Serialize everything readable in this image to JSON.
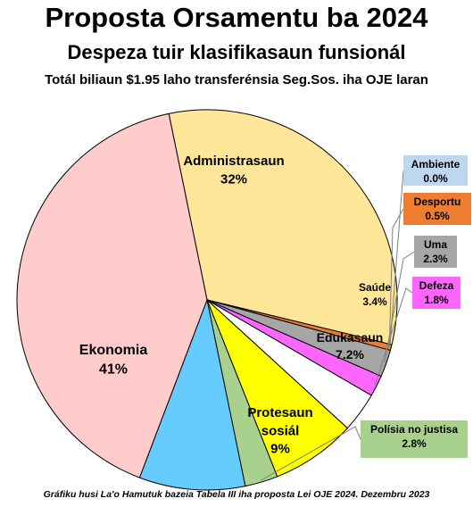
{
  "chart_data": {
    "type": "pie",
    "title": "Proposta Orsamentu ba 2024",
    "subtitle": "Despeza tuir klasifikasaun funsionál",
    "subtitle2": "Totál biliaun $1.95 laho transferénsia Seg.Sos. iha OJE laran",
    "footnote": "Gráfiku husi La'o Hamutuk bazeia Tabela III iha proposta Lei OJE 2024. Dezembru  2023",
    "slices": [
      {
        "label": "Administrasaun",
        "value": 32,
        "value_label": "32%",
        "color": "#FFE699"
      },
      {
        "label": "Ambiente",
        "value": 0.0,
        "value_label": "0.0%",
        "color": "#BDD7EE"
      },
      {
        "label": "Desportu",
        "value": 0.5,
        "value_label": "0.5%",
        "color": "#ED7D31"
      },
      {
        "label": "Uma",
        "value": 2.3,
        "value_label": "2.3%",
        "color": "#A6A6A6"
      },
      {
        "label": "Defeza",
        "value": 1.8,
        "value_label": "1.8%",
        "color": "#FF66FF"
      },
      {
        "label": "Saúde",
        "value": 3.4,
        "value_label": "3.4%",
        "color": "#FFFFFF"
      },
      {
        "label": "Edukasaun",
        "value": 7.2,
        "value_label": "7.2%",
        "color": "#FFFF00"
      },
      {
        "label": "Polísia no justisa",
        "value": 2.8,
        "value_label": "2.8%",
        "color": "#A9D18E"
      },
      {
        "label": "Protesaun sosiál",
        "value": 9,
        "value_label": "9%",
        "color": "#66CCFF"
      },
      {
        "label": "Ekonomia",
        "value": 41,
        "value_label": "41%",
        "color": "#FFCCCC"
      }
    ]
  }
}
